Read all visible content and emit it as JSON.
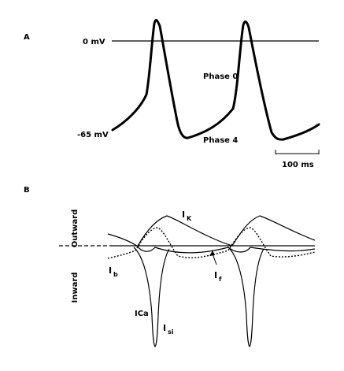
{
  "panel_a": {
    "label": "A",
    "zero_label": "0 mV",
    "rest_label": "-65 mV",
    "phase0_label": "Phase 0",
    "phase4_label": "Phase 4",
    "scale_label": "100 ms"
  },
  "panel_b": {
    "label": "B",
    "outward_label": "Outward",
    "inward_label": "Inward",
    "ik_main": "I",
    "ik_sub": "K",
    "ib_main": "I",
    "ib_sub": "b",
    "if_main": "I",
    "if_sub": "f",
    "ica_label": "ICa",
    "isi_main": "I",
    "isi_sub": "si"
  }
}
